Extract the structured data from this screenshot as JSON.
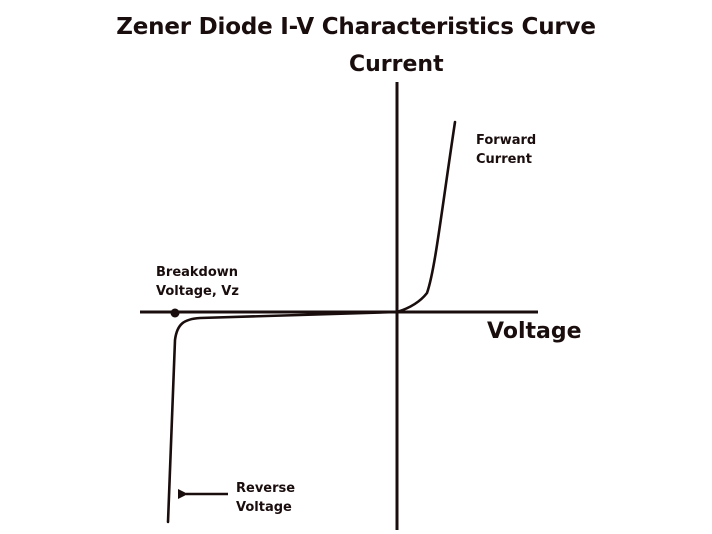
{
  "title": "Zener Diode I-V Characteristics Curve",
  "axes": {
    "y_label": "Current",
    "x_label": "Voltage"
  },
  "annotations": {
    "forward": [
      "Forward",
      "Current"
    ],
    "breakdown": [
      "Breakdown",
      "Voltage, Vz"
    ],
    "reverse": [
      "Reverse",
      "Voltage"
    ]
  },
  "colors": {
    "ink": "#1a0d0d",
    "background": "#ffffff"
  }
}
